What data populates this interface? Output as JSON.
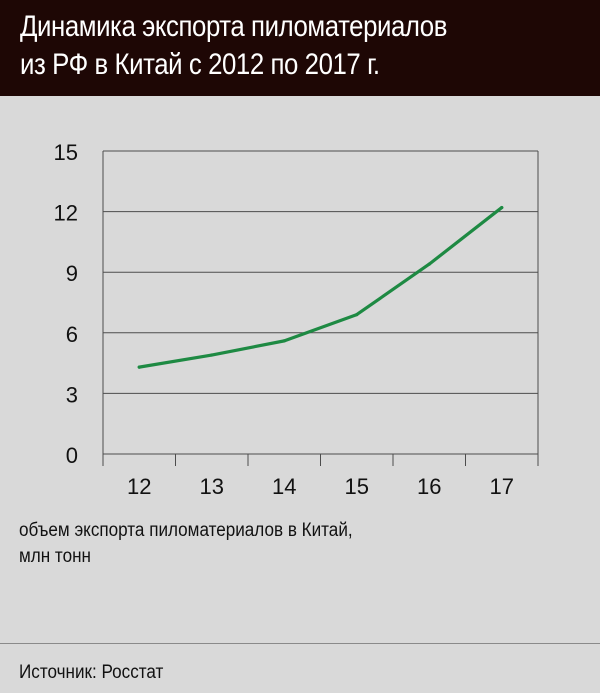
{
  "title": {
    "line1": "Динамика экспорта пиломатериалов",
    "line2": "из РФ в Китай с 2012 по 2017 г."
  },
  "caption": {
    "line1": "объем экспорта пиломатериалов в Китай,",
    "line2": "млн тонн"
  },
  "source": "Источник: Росстат",
  "colors": {
    "title_bg": "#1e0705",
    "background": "#d9d9d9",
    "line": "#1e8a43",
    "grid": "#4d4d4d"
  },
  "chart_data": {
    "type": "line",
    "categories": [
      "12",
      "13",
      "14",
      "15",
      "16",
      "17"
    ],
    "series": [
      {
        "values": [
          4.3,
          4.9,
          5.6,
          6.9,
          9.4,
          12.2
        ]
      }
    ],
    "ylim": [
      0,
      15
    ],
    "yticks": [
      0,
      3,
      6,
      9,
      12,
      15
    ],
    "grid": "y",
    "xlabel": "",
    "ylabel": ""
  }
}
